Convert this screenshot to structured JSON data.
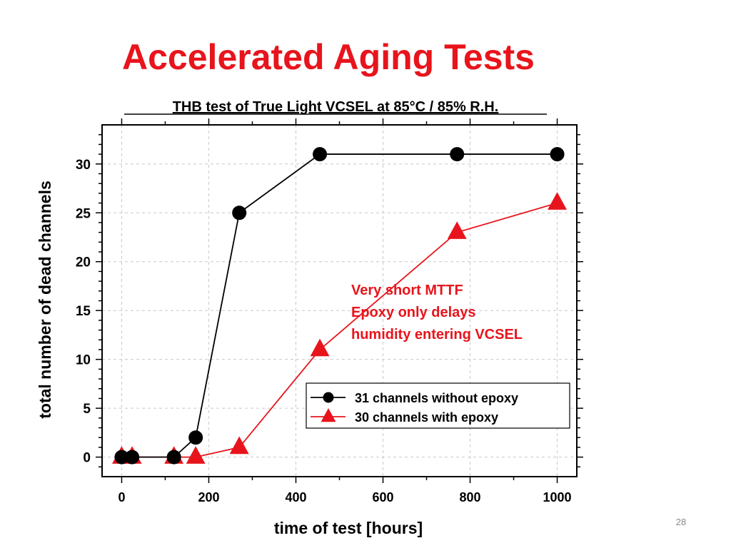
{
  "slide": {
    "title": "Accelerated Aging Tests",
    "page_number": "28"
  },
  "chart_data": {
    "type": "line",
    "title": "THB test of True Light VCSEL at 85°C / 85% R.H.",
    "xlabel": "time of test [hours]",
    "ylabel": "total number of dead channels",
    "xlim": [
      -45,
      1045
    ],
    "ylim": [
      -2,
      34
    ],
    "xticks": [
      0,
      200,
      400,
      600,
      800,
      1000
    ],
    "yticks": [
      0,
      5,
      10,
      15,
      20,
      25,
      30
    ],
    "grid": true,
    "legend_position": "lower-right",
    "series": [
      {
        "name": "31 channels without epoxy",
        "color": "#000000",
        "marker": "circle",
        "points": [
          [
            0,
            0
          ],
          [
            24,
            0
          ],
          [
            120,
            0
          ],
          [
            170,
            2
          ],
          [
            270,
            25
          ],
          [
            455,
            31
          ],
          [
            770,
            31
          ],
          [
            1000,
            31
          ]
        ]
      },
      {
        "name": "30 channels with epoxy",
        "color": "#e8141c",
        "marker": "triangle",
        "points": [
          [
            0,
            0
          ],
          [
            24,
            0
          ],
          [
            120,
            0
          ],
          [
            170,
            0
          ],
          [
            270,
            1
          ],
          [
            455,
            11
          ],
          [
            770,
            23
          ],
          [
            1000,
            26
          ]
        ]
      }
    ],
    "annotation": {
      "lines": [
        "Very short MTTF",
        "Epoxy only delays",
        "humidity entering VCSEL"
      ],
      "color": "#e8141c"
    }
  }
}
